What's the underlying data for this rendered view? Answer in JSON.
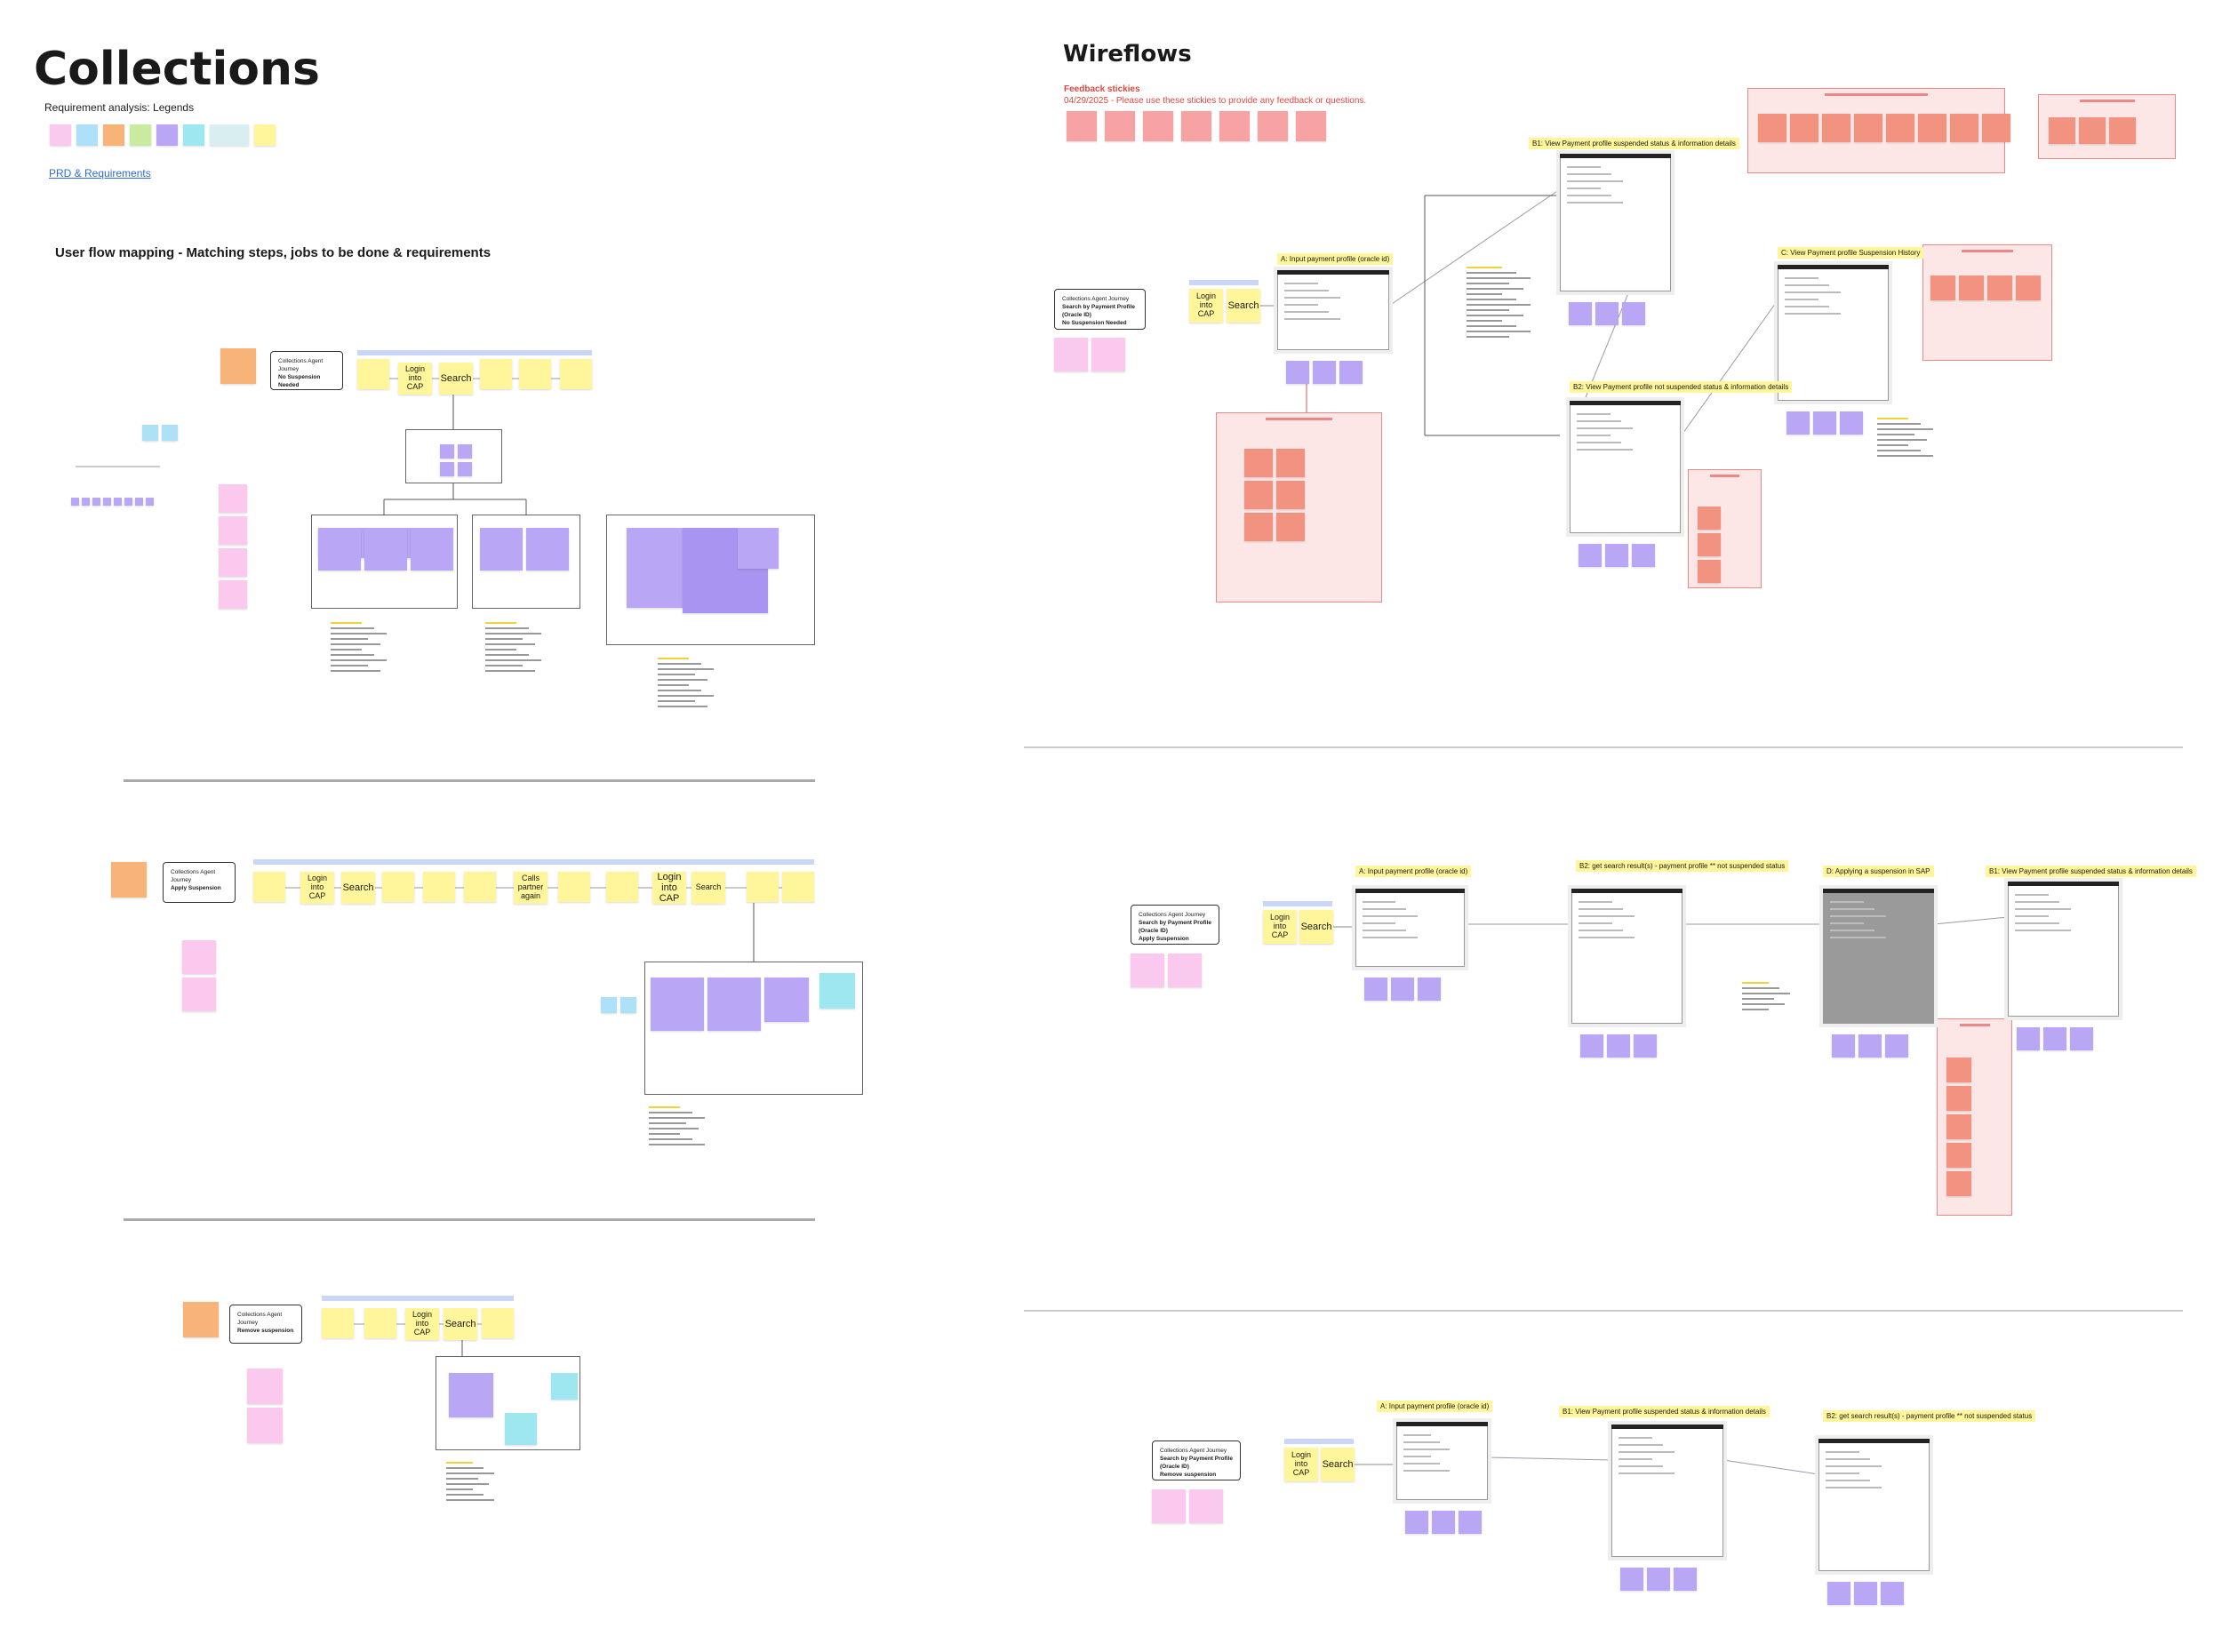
{
  "header": {
    "title": "Collections",
    "legend_label": "Requirement analysis: Legends",
    "prd_link": "PRD & Requirements"
  },
  "user_flow": {
    "title": "User flow mapping  - Matching steps, jobs to be done & requirements",
    "rows": [
      {
        "journey": [
          "Collections Agent Journey",
          "No Suspension Needed"
        ],
        "steps": [
          "Login into CAP",
          "Search"
        ]
      },
      {
        "journey": [
          "Collections Agent Journey",
          "Apply Suspension"
        ],
        "steps": [
          "Login into CAP",
          "Search",
          "Calls partner again",
          "Login into CAP",
          "Search"
        ]
      },
      {
        "journey": [
          "Collections Agent Journey",
          "Remove suspension"
        ],
        "steps": [
          "Login into CAP",
          "Search"
        ]
      }
    ]
  },
  "wireflows": {
    "title": "Wireflows",
    "feedback": {
      "title": "Feedback stickies",
      "note": "04/29/2025 - Please use these stickies to provide any feedback or questions."
    },
    "rows": [
      {
        "journey": [
          "Collections Agent Journey",
          "Search by Payment Profile (Oracle ID)",
          "No Suspension Needed"
        ],
        "steps": [
          "Login into CAP",
          "Search"
        ],
        "sections": [
          "A: Input payment profile (oracle id)",
          "B1: View Payment profile suspended status & information details",
          "B2: View Payment profile not suspended status & information details",
          "C: View Payment profile Suspension History"
        ]
      },
      {
        "journey": [
          "Collections Agent Journey",
          "Search by Payment Profile (Oracle ID)",
          "Apply Suspension"
        ],
        "steps": [
          "Login into CAP",
          "Search"
        ],
        "sections": [
          "A: Input payment profile (oracle id)",
          "B2: get search result(s) - payment profile ** not suspended status",
          "D: Applying a suspension in SAP",
          "B1: View Payment profile suspended status & information details"
        ]
      },
      {
        "journey": [
          "Collections Agent Journey",
          "Search by Payment Profile (Oracle ID)",
          "Remove suspension"
        ],
        "steps": [
          "Login into CAP",
          "Search"
        ],
        "sections": [
          "A: Input payment profile (oracle id)",
          "B1: View Payment profile suspended status & information details",
          "B2: get search result(s) - payment profile ** not suspended status"
        ]
      }
    ]
  }
}
